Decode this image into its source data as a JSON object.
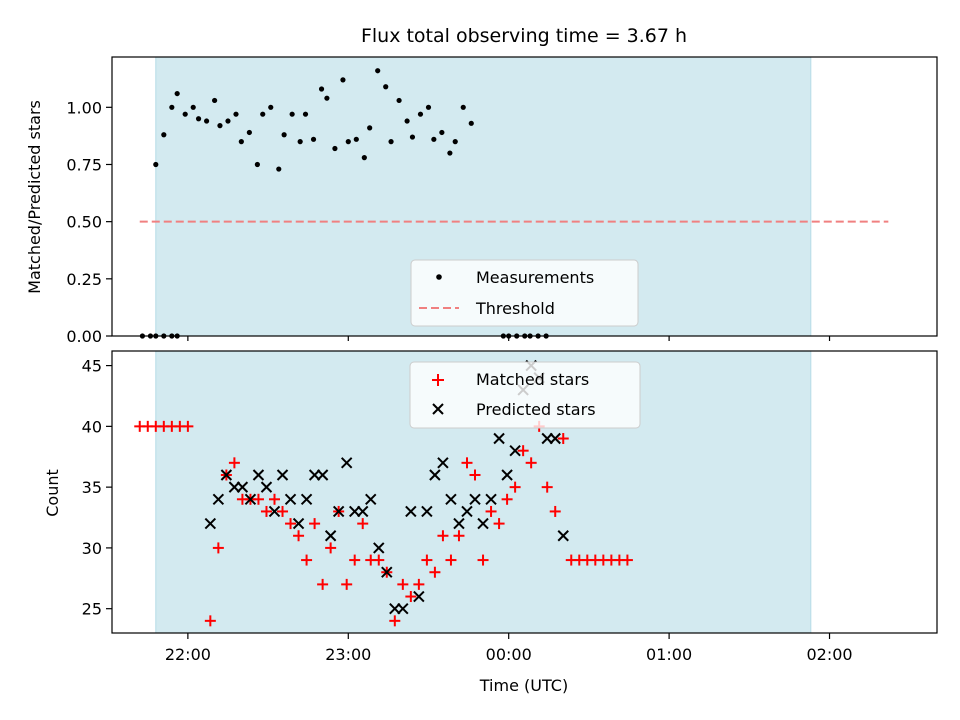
{
  "chart_data": [
    {
      "type": "scatter",
      "title": "Flux total observing time = 3.67 h",
      "xlabel": "",
      "ylabel": "Matched/Predicted stars",
      "xlim": [
        "21:32",
        "02:40"
      ],
      "ylim": [
        0.0,
        1.22
      ],
      "yticks": [
        "0.00",
        "0.25",
        "0.50",
        "0.75",
        "1.00"
      ],
      "shaded_interval": {
        "from": "21:48",
        "to": "01:53",
        "color": "#d3eaf0"
      },
      "legend": {
        "placement": "bottom-center",
        "entries": [
          "Measurements",
          "Threshold"
        ]
      },
      "colors": {
        "measurements": "#000000",
        "threshold": "#f08080"
      },
      "threshold": {
        "name": "Threshold",
        "value": 0.5,
        "from": "21:42",
        "to": "02:22"
      },
      "series": [
        {
          "name": "Measurements",
          "points": [
            [
              "21:43",
              0.0
            ],
            [
              "21:46",
              0.0
            ],
            [
              "21:48",
              0.0
            ],
            [
              "21:51",
              0.0
            ],
            [
              "21:54",
              0.0
            ],
            [
              "21:56",
              0.0
            ],
            [
              "21:48",
              0.75
            ],
            [
              "21:51",
              0.88
            ],
            [
              "21:54",
              1.0
            ],
            [
              "21:56",
              1.06
            ],
            [
              "21:59",
              0.97
            ],
            [
              "22:02",
              1.0
            ],
            [
              "22:04",
              0.95
            ],
            [
              "22:07",
              0.94
            ],
            [
              "22:10",
              1.03
            ],
            [
              "22:12",
              0.92
            ],
            [
              "22:15",
              0.94
            ],
            [
              "22:18",
              0.97
            ],
            [
              "22:20",
              0.85
            ],
            [
              "22:23",
              0.89
            ],
            [
              "22:26",
              0.75
            ],
            [
              "22:28",
              0.97
            ],
            [
              "22:31",
              1.0
            ],
            [
              "22:34",
              0.73
            ],
            [
              "22:36",
              0.88
            ],
            [
              "22:39",
              0.97
            ],
            [
              "22:42",
              0.85
            ],
            [
              "22:44",
              0.97
            ],
            [
              "22:47",
              0.86
            ],
            [
              "22:50",
              1.08
            ],
            [
              "22:52",
              1.04
            ],
            [
              "22:55",
              0.82
            ],
            [
              "22:58",
              1.12
            ],
            [
              "23:00",
              0.85
            ],
            [
              "23:03",
              0.86
            ],
            [
              "23:06",
              0.78
            ],
            [
              "23:08",
              0.91
            ],
            [
              "23:11",
              1.16
            ],
            [
              "23:14",
              1.09
            ],
            [
              "23:16",
              0.85
            ],
            [
              "23:19",
              1.03
            ],
            [
              "23:22",
              0.94
            ],
            [
              "23:24",
              0.87
            ],
            [
              "23:27",
              0.97
            ],
            [
              "23:30",
              1.0
            ],
            [
              "23:32",
              0.86
            ],
            [
              "23:35",
              0.89
            ],
            [
              "23:38",
              0.8
            ],
            [
              "23:40",
              0.85
            ],
            [
              "23:43",
              1.0
            ],
            [
              "23:46",
              0.93
            ],
            [
              "23:58",
              0.0
            ],
            [
              "00:00",
              0.0
            ],
            [
              "00:03",
              0.0
            ],
            [
              "00:06",
              0.0
            ],
            [
              "00:08",
              0.0
            ],
            [
              "00:11",
              0.0
            ],
            [
              "00:14",
              0.0
            ]
          ]
        }
      ]
    },
    {
      "type": "scatter",
      "title": "",
      "xlabel": "Time (UTC)",
      "ylabel": "Count",
      "xticks": [
        "22:00",
        "23:00",
        "00:00",
        "01:00",
        "02:00"
      ],
      "yticks": [
        "25",
        "30",
        "35",
        "40",
        "45"
      ],
      "ylim": [
        23,
        46.2
      ],
      "legend": {
        "placement": "top-center",
        "entries": [
          "Matched stars",
          "Predicted stars"
        ]
      },
      "colors": {
        "matched": "#ff0000",
        "predicted": "#000000"
      },
      "series": [
        {
          "name": "Matched stars",
          "marker": "+",
          "points": [
            [
              21.7,
              40
            ],
            [
              21.75,
              40
            ],
            [
              21.8,
              40
            ],
            [
              21.85,
              40
            ],
            [
              21.9,
              40
            ],
            [
              21.95,
              40
            ],
            [
              22.0,
              40
            ],
            [
              22.14,
              24
            ],
            [
              22.19,
              30
            ],
            [
              22.24,
              36
            ],
            [
              22.29,
              37
            ],
            [
              22.34,
              34
            ],
            [
              22.39,
              34
            ],
            [
              22.44,
              34
            ],
            [
              22.49,
              33
            ],
            [
              22.54,
              34
            ],
            [
              22.59,
              33
            ],
            [
              22.64,
              32
            ],
            [
              22.69,
              31
            ],
            [
              22.74,
              29
            ],
            [
              22.79,
              32
            ],
            [
              22.84,
              27
            ],
            [
              22.89,
              30
            ],
            [
              22.94,
              33
            ],
            [
              22.99,
              27
            ],
            [
              23.04,
              29
            ],
            [
              23.09,
              32
            ],
            [
              23.14,
              29
            ],
            [
              23.19,
              29
            ],
            [
              23.24,
              28
            ],
            [
              23.29,
              24
            ],
            [
              23.34,
              27
            ],
            [
              23.39,
              26
            ],
            [
              23.44,
              27
            ],
            [
              23.49,
              29
            ],
            [
              23.54,
              28
            ],
            [
              23.59,
              31
            ],
            [
              23.64,
              29
            ],
            [
              23.69,
              31
            ],
            [
              23.74,
              37
            ],
            [
              23.79,
              36
            ],
            [
              23.84,
              29
            ],
            [
              23.89,
              33
            ],
            [
              23.94,
              32
            ],
            [
              23.99,
              34
            ],
            [
              24.04,
              35
            ],
            [
              24.09,
              38
            ],
            [
              24.14,
              37
            ],
            [
              24.19,
              40
            ],
            [
              24.24,
              35
            ],
            [
              24.29,
              33
            ],
            [
              24.34,
              39
            ],
            [
              24.39,
              29
            ],
            [
              24.44,
              29
            ],
            [
              24.49,
              29
            ],
            [
              24.54,
              29
            ],
            [
              24.59,
              29
            ],
            [
              24.64,
              29
            ],
            [
              24.69,
              29
            ],
            [
              24.74,
              29
            ]
          ]
        },
        {
          "name": "Predicted stars",
          "marker": "x",
          "points": [
            [
              22.14,
              32
            ],
            [
              22.19,
              34
            ],
            [
              22.24,
              36
            ],
            [
              22.29,
              35
            ],
            [
              22.34,
              35
            ],
            [
              22.39,
              34
            ],
            [
              22.44,
              36
            ],
            [
              22.49,
              35
            ],
            [
              22.54,
              33
            ],
            [
              22.59,
              36
            ],
            [
              22.64,
              34
            ],
            [
              22.69,
              32
            ],
            [
              22.74,
              34
            ],
            [
              22.79,
              36
            ],
            [
              22.84,
              36
            ],
            [
              22.89,
              31
            ],
            [
              22.94,
              33
            ],
            [
              22.99,
              37
            ],
            [
              23.04,
              33
            ],
            [
              23.09,
              33
            ],
            [
              23.14,
              34
            ],
            [
              23.19,
              30
            ],
            [
              23.24,
              28
            ],
            [
              23.29,
              25
            ],
            [
              23.34,
              25
            ],
            [
              23.39,
              33
            ],
            [
              23.44,
              26
            ],
            [
              23.49,
              33
            ],
            [
              23.54,
              36
            ],
            [
              23.59,
              37
            ],
            [
              23.64,
              34
            ],
            [
              23.69,
              32
            ],
            [
              23.74,
              33
            ],
            [
              23.79,
              34
            ],
            [
              23.84,
              32
            ],
            [
              23.89,
              34
            ],
            [
              23.94,
              39
            ],
            [
              23.99,
              36
            ],
            [
              24.04,
              38
            ],
            [
              24.09,
              43
            ],
            [
              24.14,
              45
            ],
            [
              24.19,
              44
            ],
            [
              24.24,
              39
            ],
            [
              24.29,
              39
            ],
            [
              24.34,
              31
            ]
          ]
        }
      ]
    }
  ]
}
